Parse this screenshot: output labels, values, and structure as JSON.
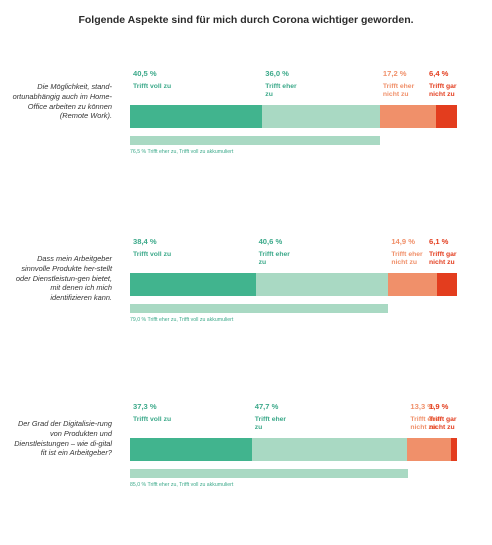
{
  "title": "Folgende Aspekte sind für mich durch Corona wichtiger geworden.",
  "colors": {
    "trifft_voll_zu": "#41b48e",
    "trifft_eher_zu": "#a9d9c3",
    "trifft_eher_nicht_zu": "#f0906a",
    "trifft_gar_nicht_zu": "#e33d1e",
    "label_green": "#3ca98a",
    "label_orange": "#f0906a",
    "label_red": "#e33d1e"
  },
  "chart_data": [
    {
      "type": "bar",
      "question": "Die Möglichkeit, stand-ortunabhängig auch im Home-Office arbeiten zu können (Remote Work).",
      "categories": [
        "Trifft voll zu",
        "Trifft eher zu",
        "Trifft eher nicht zu",
        "Trifft gar nicht zu"
      ],
      "values": [
        40.5,
        36.0,
        17.2,
        6.4
      ],
      "value_labels": [
        "40,5 %",
        "36,0 %",
        "17,2 %",
        "6,4 %"
      ],
      "cumulative": 76.5,
      "cumulative_label": "76,5 % Trifft eher zu, Trifft voll zu akkumuliert"
    },
    {
      "type": "bar",
      "question": "Dass mein Arbeitgeber sinnvolle Produkte her-stellt oder Dienstleistun-gen bietet, mit denen ich mich identifizieren kann.",
      "categories": [
        "Trifft voll zu",
        "Trifft eher zu",
        "Trifft eher nicht zu",
        "Trifft gar nicht zu"
      ],
      "values": [
        38.4,
        40.6,
        14.9,
        6.1
      ],
      "value_labels": [
        "38,4 %",
        "40,6 %",
        "14,9 %",
        "6,1 %"
      ],
      "cumulative": 79.0,
      "cumulative_label": "79,0 % Trifft eher zu, Trifft voll zu akkumuliert"
    },
    {
      "type": "bar",
      "question": "Der Grad der Digitalisie-rung von Produkten und Dienstleistungen – wie di-gital fit ist ein Arbeitgeber?",
      "categories": [
        "Trifft voll zu",
        "Trifft eher zu",
        "Trifft eher nicht zu",
        "Trifft gar nicht zu"
      ],
      "values": [
        37.3,
        47.7,
        13.3,
        1.9
      ],
      "value_labels": [
        "37,3 %",
        "47,7 %",
        "13,3 %",
        "1,9 %"
      ],
      "cumulative": 85.0,
      "cumulative_label": "85,0 % Trifft eher zu, Trifft voll zu akkumuliert"
    }
  ]
}
